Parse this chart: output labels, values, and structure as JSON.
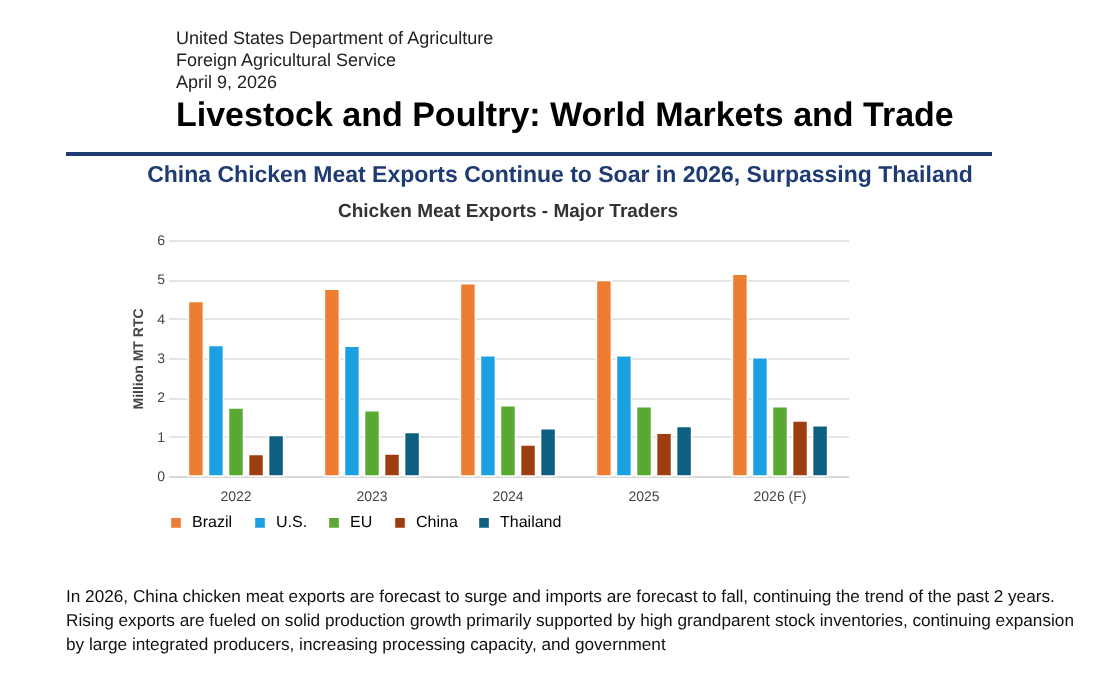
{
  "chart_data": {
    "type": "bar",
    "title": "Chicken Meat Exports - Major Traders",
    "subtitle": "China Chicken Meat Exports Continue to Soar in 2026, Surpassing Thailand",
    "ylabel": "Million MT RTC",
    "categories": [
      "2022",
      "2023",
      "2024",
      "2025",
      "2026 (F)"
    ],
    "series": [
      {
        "name": "Brazil",
        "color": "#ed7d31",
        "values": [
          4.44,
          4.75,
          4.89,
          4.97,
          5.13
        ]
      },
      {
        "name": "U.S.",
        "color": "#1ba1e2",
        "values": [
          3.32,
          3.3,
          3.06,
          3.06,
          3.01
        ]
      },
      {
        "name": "EU",
        "color": "#5aa832",
        "values": [
          1.73,
          1.66,
          1.79,
          1.76,
          1.76
        ]
      },
      {
        "name": "China",
        "color": "#9e3d12",
        "values": [
          0.55,
          0.56,
          0.79,
          1.09,
          1.4
        ]
      },
      {
        "name": "Thailand",
        "color": "#0f5f80",
        "values": [
          1.03,
          1.11,
          1.2,
          1.26,
          1.28
        ]
      }
    ],
    "ylim": [
      0,
      6
    ],
    "yticks": [
      0,
      1,
      2,
      3,
      4,
      5,
      6
    ],
    "grid": "y",
    "legend": "bottom",
    "annotations": [
      "United States Department of Agriculture",
      "Foreign Agricultural Service",
      "April 9, 2026",
      "Livestock and Poultry: World Markets and Trade",
      "In 2026, China chicken meat exports are forecast to surge and imports are forecast to fall, continuing the trend of the past 2 years. Rising exports are fueled on solid production growth primarily supported by high grandparent stock inventories, continuing expansion by large integrated producers, increasing processing capacity, and government"
    ]
  }
}
